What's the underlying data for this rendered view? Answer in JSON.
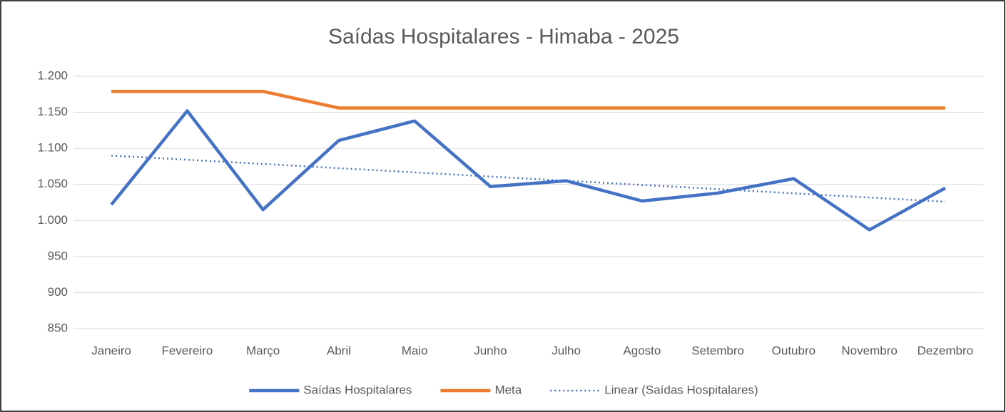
{
  "chart_data": {
    "type": "line",
    "title": "Saídas Hospitalares -  Himaba - 2025",
    "categories": [
      "Janeiro",
      "Fevereiro",
      "Março",
      "Abril",
      "Maio",
      "Junho",
      "Julho",
      "Agosto",
      "Setembro",
      "Outubro",
      "Novembro",
      "Dezembro"
    ],
    "series": [
      {
        "name": "Saídas Hospitalares",
        "color": "#4472c4",
        "style": "solid",
        "values": [
          1022,
          1152,
          1015,
          1111,
          1138,
          1047,
          1055,
          1027,
          1038,
          1058,
          987,
          1045
        ]
      },
      {
        "name": "Meta",
        "color": "#ed7d31",
        "style": "solid",
        "values": [
          1179,
          1179,
          1179,
          1156,
          1156,
          1156,
          1156,
          1156,
          1156,
          1156,
          1156,
          1156
        ]
      },
      {
        "name": "Linear (Saídas Hospitalares)",
        "color": "#4472c4",
        "style": "dotted",
        "values": [
          1090,
          1084.2,
          1078.4,
          1072.5,
          1066.7,
          1060.9,
          1055.1,
          1049.3,
          1043.5,
          1037.6,
          1031.8,
          1026
        ]
      }
    ],
    "ylim": [
      850,
      1200
    ],
    "yticks": [
      850,
      900,
      950,
      {
        "value": 1000,
        "label": "1.000"
      },
      {
        "value": 1050,
        "label": "1.050"
      },
      {
        "value": 1100,
        "label": "1.100"
      },
      {
        "value": 1150,
        "label": "1.150"
      },
      {
        "value": 1200,
        "label": "1.200"
      }
    ],
    "grid": true,
    "legend": "bottom"
  }
}
